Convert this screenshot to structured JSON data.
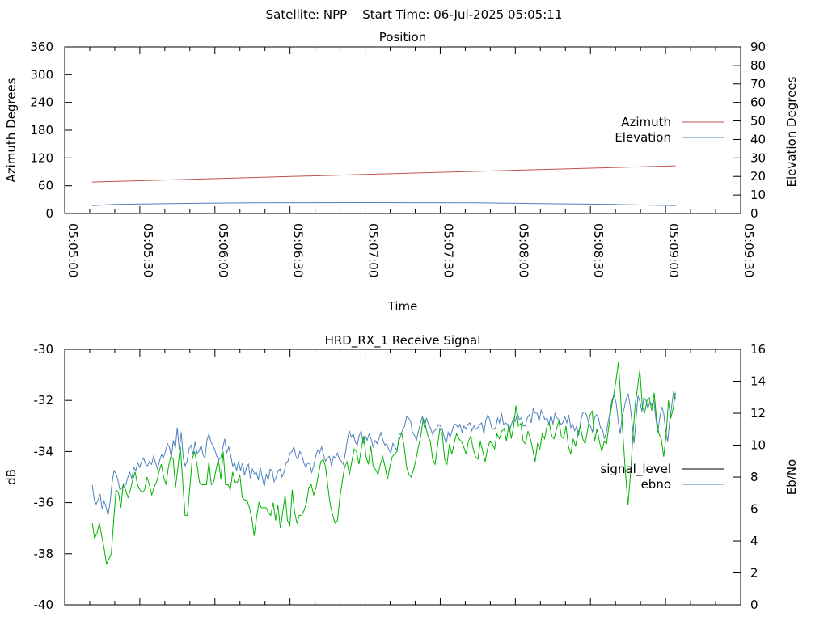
{
  "header": {
    "title": "Satellite: NPP    Start Time: 06-Jul-2025 05:05:11"
  },
  "colors": {
    "azimuth": "#c0504d",
    "elevation": "#4f81bd",
    "signal_level": "#00b400",
    "ebno": "#4f81bd",
    "legend_signal_level": "#000000"
  },
  "chart_data": [
    {
      "type": "line",
      "title": "Position",
      "xlabel": "Time",
      "ylabel": "Azimuth Degrees",
      "y2label": "Elevation Degrees",
      "x_ticks": [
        "05:05:00",
        "05:05:30",
        "05:06:00",
        "05:06:30",
        "05:07:00",
        "05:07:30",
        "05:08:00",
        "05:08:30",
        "05:09:00",
        "05:09:30"
      ],
      "xlim": [
        "05:05:00",
        "05:09:30"
      ],
      "ylim": [
        0,
        360
      ],
      "y_ticks": [
        "0",
        "60",
        "120",
        "180",
        "240",
        "300",
        "360"
      ],
      "y2lim": [
        0,
        90
      ],
      "y2_ticks": [
        "0",
        "10",
        "20",
        "30",
        "40",
        "50",
        "60",
        "70",
        "80",
        "90"
      ],
      "legend_position": "right",
      "series": [
        {
          "name": "Azimuth",
          "axis": "y1",
          "x": [
            "05:05:11",
            "05:09:04"
          ],
          "values": [
            68,
            103
          ]
        },
        {
          "name": "Elevation",
          "axis": "y2",
          "x": [
            "05:05:11",
            "05:05:20",
            "05:05:45",
            "05:06:15",
            "05:07:00",
            "05:07:45",
            "05:08:06",
            "05:08:40",
            "05:09:04"
          ],
          "values": [
            4.3,
            4.9,
            5.4,
            5.8,
            5.9,
            5.8,
            5.4,
            4.9,
            4.3
          ]
        }
      ]
    },
    {
      "type": "line",
      "title": "HRD_RX_1 Receive Signal",
      "xlabel": "",
      "ylabel": "dB",
      "y2label": "Eb/No",
      "ylim": [
        -40,
        -30
      ],
      "y_ticks": [
        "-30",
        "-32",
        "-34",
        "-36",
        "-38",
        "-40"
      ],
      "y2lim": [
        0,
        16
      ],
      "y2_ticks": [
        "0",
        "2",
        "4",
        "6",
        "8",
        "10",
        "12",
        "14",
        "16"
      ],
      "xlim": [
        "05:05:00",
        "05:09:30"
      ],
      "legend_position": "right",
      "series": [
        {
          "name": "signal_level",
          "axis": "y1",
          "x_start": "05:05:11",
          "x_end": "05:09:04",
          "values": [
            -36.8,
            -37.4,
            -37.2,
            -36.8,
            -37.3,
            -37.8,
            -38.4,
            -38.2,
            -38.0,
            -36.7,
            -35.5,
            -35.6,
            -36.2,
            -35.3,
            -35.5,
            -35.8,
            -35.5,
            -35.1,
            -34.8,
            -35.3,
            -35.5,
            -35.6,
            -35.5,
            -35.0,
            -35.3,
            -35.7,
            -35.4,
            -35.2,
            -34.8,
            -34.5,
            -35.0,
            -35.3,
            -34.6,
            -34.2,
            -34.3,
            -35.4,
            -34.6,
            -33.8,
            -35.2,
            -36.5,
            -36.5,
            -35.4,
            -34.3,
            -34.0,
            -34.5,
            -35.2,
            -35.3,
            -35.3,
            -35.3,
            -34.4,
            -35.3,
            -35.2,
            -34.7,
            -34.3,
            -35.1,
            -34.0,
            -35.3,
            -35.3,
            -35.5,
            -34.8,
            -35.2,
            -35.2,
            -34.9,
            -35.8,
            -35.9,
            -35.9,
            -36.2,
            -36.6,
            -37.3,
            -36.6,
            -36.0,
            -36.2,
            -36.2,
            -36.2,
            -36.4,
            -36.5,
            -36.0,
            -36.7,
            -36.1,
            -37.0,
            -36.4,
            -35.7,
            -36.7,
            -36.9,
            -35.5,
            -36.4,
            -36.8,
            -36.5,
            -36.5,
            -36.3,
            -36.0,
            -35.4,
            -35.3,
            -35.7,
            -35.4,
            -34.9,
            -34.4,
            -34.3,
            -34.6,
            -35.4,
            -36.1,
            -36.5,
            -36.8,
            -36.7,
            -35.8,
            -35.2,
            -34.6,
            -34.4,
            -34.9,
            -34.4,
            -33.9,
            -34.0,
            -34.5,
            -33.9,
            -33.4,
            -34.2,
            -34.5,
            -33.8,
            -34.6,
            -34.7,
            -34.9,
            -34.5,
            -34.2,
            -34.6,
            -35.1,
            -34.6,
            -34.2,
            -34.1,
            -34.0,
            -33.3,
            -33.3,
            -33.8,
            -34.6,
            -34.9,
            -35.0,
            -34.7,
            -34.3,
            -33.8,
            -33.4,
            -32.7,
            -33.0,
            -33.4,
            -33.6,
            -34.3,
            -34.5,
            -33.8,
            -33.1,
            -33.3,
            -34.3,
            -34.5,
            -33.7,
            -34.1,
            -33.7,
            -33.3,
            -33.5,
            -33.6,
            -33.8,
            -34.1,
            -33.6,
            -33.4,
            -33.9,
            -34.2,
            -34.3,
            -33.6,
            -34.0,
            -34.4,
            -33.9,
            -33.6,
            -33.7,
            -33.9,
            -33.3,
            -33.5,
            -33.2,
            -33.1,
            -33.6,
            -32.9,
            -33.5,
            -33.0,
            -32.2,
            -33.0,
            -32.9,
            -33.6,
            -33.7,
            -33.2,
            -33.5,
            -33.9,
            -34.4,
            -33.7,
            -33.9,
            -33.3,
            -33.5,
            -33.0,
            -32.9,
            -33.4,
            -33.5,
            -33.1,
            -32.8,
            -33.4,
            -33.5,
            -33.0,
            -33.8,
            -34.1,
            -33.5,
            -33.8,
            -33.3,
            -33.0,
            -33.5,
            -33.7,
            -33.2,
            -32.6,
            -32.4,
            -33.6,
            -33.1,
            -33.6,
            -34.0,
            -33.6,
            -33.7,
            -33.0,
            -32.3,
            -31.8,
            -31.2,
            -30.5,
            -32.0,
            -33.5,
            -34.9,
            -36.1,
            -35.0,
            -33.5,
            -32.2,
            -31.5,
            -30.8,
            -32.2,
            -32.5,
            -32.0,
            -31.9,
            -32.4,
            -31.7,
            -32.7,
            -33.3,
            -33.5,
            -34.2,
            -33.4,
            -32.0,
            -32.7,
            -32.3,
            -31.7
          ]
        },
        {
          "name": "ebno",
          "axis": "y2",
          "x_start": "05:05:11",
          "x_end": "05:09:04",
          "values": [
            7.5,
            6.6,
            6.3,
            6.6,
            6.9,
            6.0,
            6.5,
            6.1,
            5.6,
            6.4,
            7.6,
            8.4,
            8.2,
            7.8,
            7.2,
            7.3,
            7.6,
            7.5,
            8.0,
            8.3,
            7.9,
            8.6,
            8.4,
            8.9,
            8.6,
            9.0,
            9.2,
            8.8,
            8.7,
            9.0,
            8.8,
            9.3,
            8.9,
            8.5,
            9.0,
            9.4,
            9.2,
            9.6,
            10.1,
            9.9,
            9.2,
            10.3,
            9.8,
            11.1,
            9.7,
            10.8,
            9.2,
            8.7,
            9.0,
            9.8,
            10.0,
            9.4,
            10.2,
            9.5,
            9.6,
            10.0,
            9.4,
            9.2,
            10.3,
            10.7,
            10.2,
            10.0,
            9.7,
            9.3,
            9.1,
            9.2,
            9.8,
            10.4,
            9.5,
            9.9,
            9.4,
            8.7,
            8.9,
            8.4,
            9.0,
            8.4,
            8.9,
            8.1,
            8.6,
            8.8,
            7.9,
            8.5,
            8.2,
            8.3,
            7.8,
            8.6,
            8.0,
            7.4,
            8.2,
            7.8,
            8.5,
            8.4,
            7.7,
            8.0,
            8.4,
            8.5,
            8.0,
            8.3,
            8.9,
            9.0,
            9.5,
            9.6,
            9.9,
            9.3,
            9.1,
            9.6,
            9.4,
            8.9,
            8.6,
            8.9,
            8.8,
            8.3,
            8.7,
            9.3,
            9.7,
            9.5,
            9.9,
            9.4,
            9.0,
            9.2,
            9.3,
            8.7,
            9.3,
            9.2,
            9.5,
            9.1,
            9.0,
            8.8,
            9.5,
            10.3,
            10.9,
            10.5,
            10.7,
            10.2,
            10.0,
            10.6,
            10.9,
            10.1,
            10.6,
            10.3,
            10.7,
            10.4,
            9.9,
            10.3,
            10.1,
            10.4,
            10.8,
            10.3,
            10.0,
            10.1,
            9.7,
            9.5,
            10.1,
            9.9,
            9.7,
            10.2,
            10.6,
            11.0,
            11.2,
            11.8,
            11.7,
            11.5,
            10.8,
            10.6,
            10.3,
            10.9,
            11.4,
            11.8,
            11.1,
            11.7,
            11.3,
            11.1,
            10.7,
            10.9,
            11.0,
            11.3,
            11.2,
            11.0,
            10.5,
            10.1,
            10.8,
            10.5,
            10.9,
            11.3,
            11.3,
            11.1,
            11.3,
            10.8,
            11.2,
            11.0,
            11.3,
            11.4,
            10.9,
            11.2,
            11.0,
            11.1,
            11.3,
            11.4,
            10.7,
            11.5,
            11.9,
            11.6,
            11.1,
            11.0,
            11.1,
            11.7,
            11.4,
            12.0,
            11.3,
            11.4,
            11.3,
            10.9,
            11.3,
            11.7,
            11.5,
            12.0,
            11.6,
            11.7,
            11.2,
            11.2,
            11.7,
            11.9,
            11.4,
            12.3,
            12.0,
            12.0,
            11.5,
            12.2,
            11.9,
            11.6,
            11.7,
            11.3,
            11.9,
            11.3,
            12.0,
            11.7,
            11.6,
            11.3,
            11.4,
            11.8,
            11.4,
            11.9,
            11.1,
            11.3,
            10.9,
            11.2,
            10.6,
            11.5,
            12.0,
            12.1,
            11.9,
            11.4,
            11.2,
            10.8,
            11.7,
            11.9,
            11.7,
            11.1,
            11.0,
            10.4,
            10.8,
            11.5,
            12.2,
            12.9,
            13.1,
            12.6,
            11.5,
            10.7,
            11.8,
            12.3,
            12.9,
            13.2,
            12.5,
            11.4,
            10.1,
            11.6,
            13.1,
            12.7,
            12.1,
            13.0,
            12.8,
            12.3,
            12.7,
            12.5,
            12.8,
            11.7,
            10.8,
            11.7,
            12.4,
            12.0,
            10.9,
            10.2,
            11.5,
            12.4,
            13.4,
            12.9
          ]
        }
      ]
    }
  ]
}
